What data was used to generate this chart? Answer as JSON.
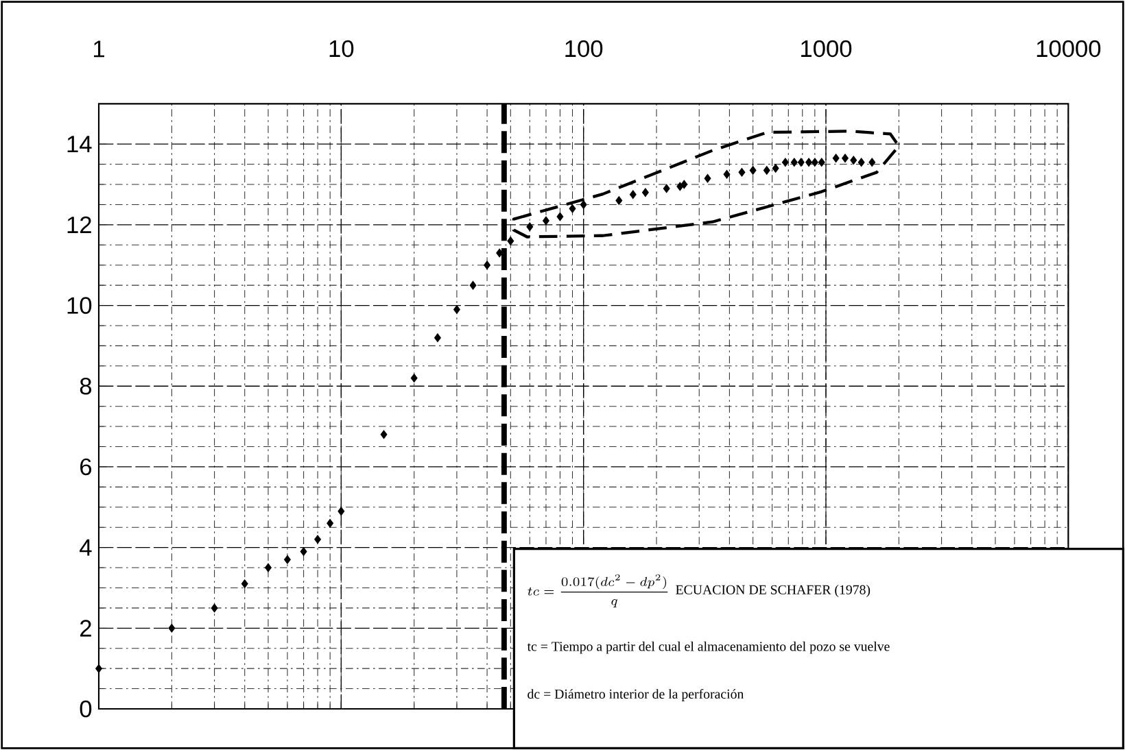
{
  "chart_data": {
    "type": "scatter",
    "log": "x",
    "grid": true,
    "marker": "diamond",
    "color": "#000000",
    "x": [
      1,
      2,
      3,
      4,
      5,
      6,
      7,
      8,
      9,
      10,
      15,
      20,
      25,
      30,
      35,
      40,
      45,
      50,
      60,
      70,
      80,
      90,
      100,
      140,
      160,
      180,
      220,
      250,
      260,
      325,
      390,
      450,
      500,
      570,
      620,
      680,
      740,
      790,
      850,
      900,
      960,
      1100,
      1200,
      1300,
      1400,
      1550
    ],
    "values": [
      1.0,
      2.0,
      2.5,
      3.1,
      3.5,
      3.7,
      3.9,
      4.2,
      4.6,
      4.9,
      6.8,
      8.2,
      9.2,
      9.9,
      10.5,
      11.0,
      11.3,
      11.6,
      11.95,
      12.1,
      12.2,
      12.4,
      12.5,
      12.6,
      12.75,
      12.8,
      12.9,
      12.95,
      13.0,
      13.15,
      13.25,
      13.3,
      13.35,
      13.35,
      13.4,
      13.55,
      13.55,
      13.55,
      13.55,
      13.55,
      13.55,
      13.65,
      13.65,
      13.6,
      13.55,
      13.55
    ],
    "xlim": [
      1,
      10000
    ],
    "xticks": [
      1,
      10,
      100,
      1000,
      10000
    ],
    "ylim": [
      0,
      15
    ],
    "yticks": [
      0,
      2,
      4,
      6,
      8,
      10,
      12,
      14
    ],
    "ref_lines": [
      {
        "axis": "x",
        "value": 47,
        "color": "#000000",
        "line_style": "dashed"
      }
    ],
    "annotations": [
      "tc = \\frac{0.017(dc^{2} - dp^{2})}{q}",
      "ECUACION DE SCHAFER (1978)",
      "tc = Tiempo a partir del cual el almacenamiento del pozo se vuelve",
      "dc = Diámetro interior de la perforación"
    ]
  }
}
